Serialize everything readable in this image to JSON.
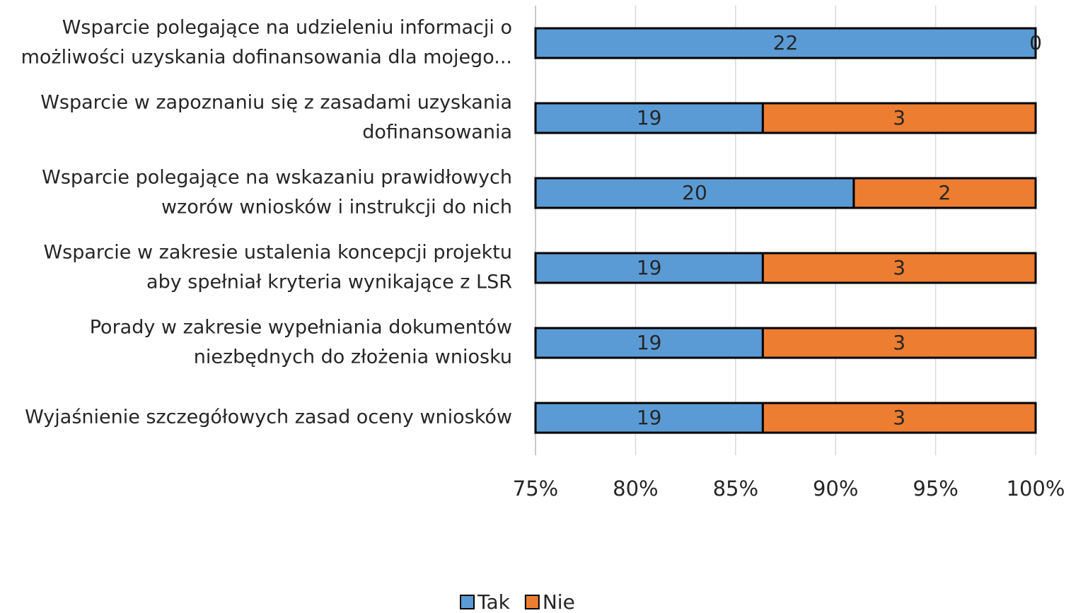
{
  "chart_data": {
    "type": "bar",
    "orientation": "horizontal",
    "stack": "percent",
    "categories": [
      [
        "Wsparcie polegające na udzieleniu informacji o",
        "możliwości uzyskania dofinansowania dla mojego..."
      ],
      [
        "Wsparcie w zapoznaniu się z zasadami uzyskania",
        "dofinansowania"
      ],
      [
        "Wsparcie polegające na wskazaniu prawidłowych",
        "wzorów wniosków i instrukcji do nich"
      ],
      [
        "Wsparcie w zakresie ustalenia koncepcji projektu",
        "aby spełniał kryteria wynikające z LSR"
      ],
      [
        "Porady w zakresie wypełniania dokumentów",
        "niezbędnych do złożenia wniosku"
      ],
      [
        "Wyjaśnienie szczegółowych zasad oceny wniosków"
      ]
    ],
    "series": [
      {
        "name": "Tak",
        "color": "#5b9bd5",
        "values": [
          22,
          19,
          20,
          19,
          19,
          19
        ]
      },
      {
        "name": "Nie",
        "color": "#ed7d31",
        "values": [
          0,
          3,
          2,
          3,
          3,
          3
        ]
      }
    ],
    "xlim": [
      75,
      100
    ],
    "xticks": [
      {
        "value": 75,
        "label": "75%"
      },
      {
        "value": 80,
        "label": "80%"
      },
      {
        "value": 85,
        "label": "85%"
      },
      {
        "value": 90,
        "label": "90%"
      },
      {
        "value": 95,
        "label": "95%"
      },
      {
        "value": 100,
        "label": "100%"
      }
    ],
    "grid": true,
    "legend": "bottom"
  }
}
